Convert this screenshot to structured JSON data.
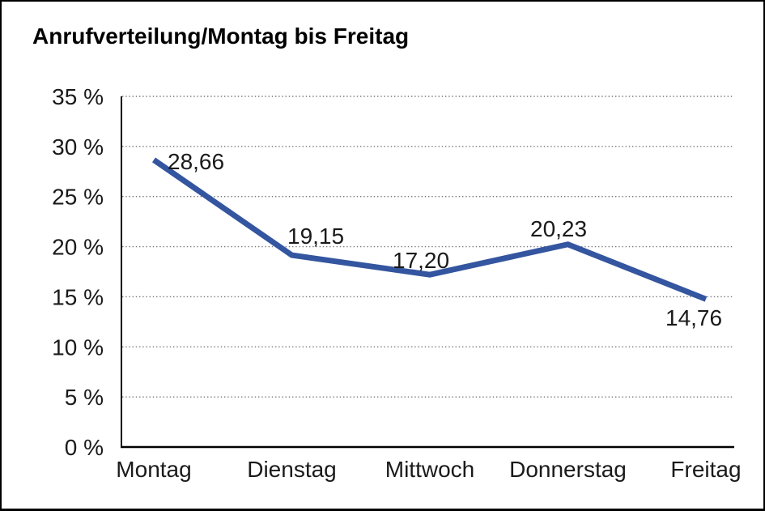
{
  "title": "Anrufverteilung/Montag bis Freitag",
  "chart_data": {
    "type": "line",
    "title": "Anrufverteilung/Montag bis Freitag",
    "categories": [
      "Montag",
      "Dienstag",
      "Mittwoch",
      "Donnerstag",
      "Freitag"
    ],
    "values": [
      28.66,
      19.15,
      17.2,
      20.23,
      14.76
    ],
    "point_labels": [
      "28,66",
      "19,15",
      "17,20",
      "20,23",
      "14,76"
    ],
    "xlabel": "",
    "ylabel": "",
    "y_axis": {
      "min": 0,
      "max": 35,
      "step": 5,
      "tick_labels": [
        "0 %",
        "5 %",
        "10 %",
        "15 %",
        "20 %",
        "25 %",
        "30 %",
        "35 %"
      ]
    },
    "grid": {
      "horizontal": true,
      "vertical": false,
      "style": "dotted"
    },
    "legend_position": "none",
    "markers": "none",
    "colors": {
      "line": "#34559F",
      "axis": "#000000",
      "grid": "#777777",
      "text": "#1a1a1a",
      "background": "#ffffff",
      "frame": "#000000"
    }
  }
}
